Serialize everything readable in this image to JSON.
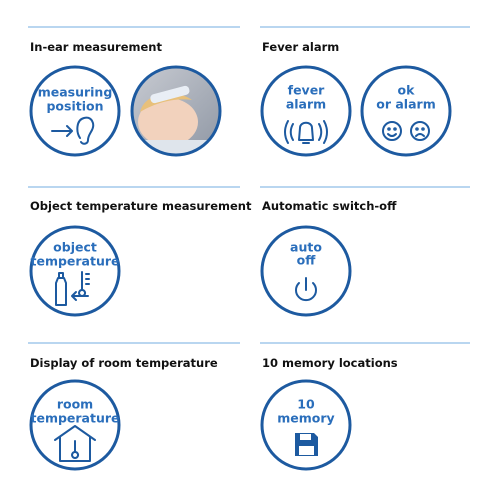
{
  "sections": [
    {
      "title": "In-ear measurement",
      "icons": [
        [
          "measuring",
          "position"
        ]
      ]
    },
    {
      "title": "Fever alarm",
      "icons": [
        [
          "fever",
          "alarm"
        ],
        [
          "ok",
          "or alarm"
        ]
      ]
    },
    {
      "title": "Object temperature measurement",
      "icons": [
        [
          "object",
          "temperature"
        ]
      ]
    },
    {
      "title": "Automatic switch-off",
      "icons": [
        [
          "auto",
          "off"
        ]
      ]
    },
    {
      "title": "Display of room temperature",
      "icons": [
        [
          "room",
          "temperature"
        ]
      ]
    },
    {
      "title": "10 memory locations",
      "icons": [
        [
          "10",
          "memory"
        ]
      ]
    }
  ]
}
